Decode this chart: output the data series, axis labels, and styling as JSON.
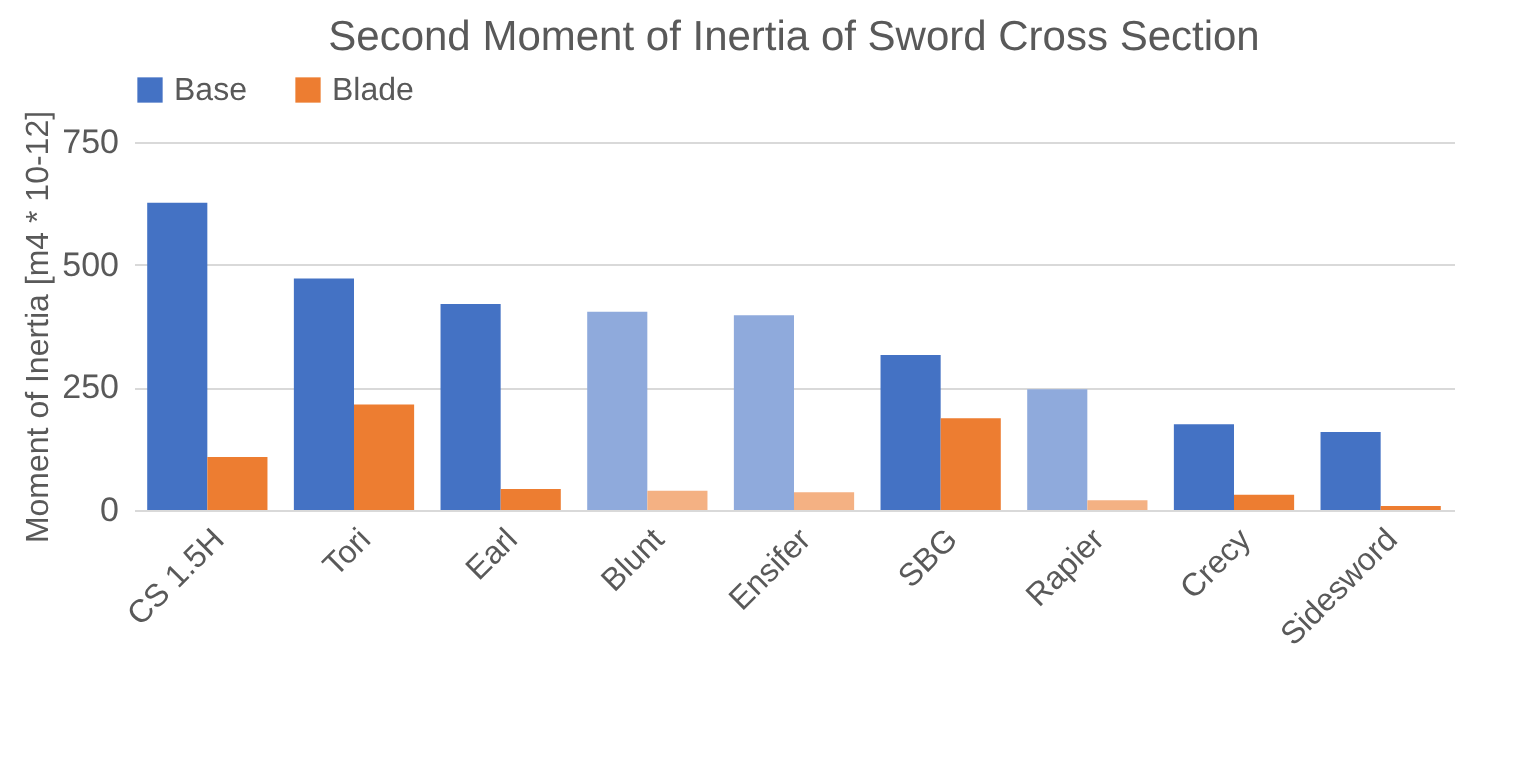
{
  "chart_data": {
    "type": "bar",
    "title": "Second Moment of Inertia of Sword Cross Section",
    "ylabel": "Moment of Inertia [m4 * 10-12]",
    "categories": [
      "CS 1.5H",
      "Tori",
      "Earl",
      "Blunt",
      "Ensifer",
      "SBG",
      "Rapier",
      "Crecy",
      "Sidesword"
    ],
    "series": [
      {
        "name": "Base",
        "color": "#4472c4",
        "colors": [
          "#4472c4",
          "#4472c4",
          "#4472c4",
          "#8faadc",
          "#8faadc",
          "#4472c4",
          "#8faadc",
          "#4472c4",
          "#4472c4"
        ],
        "values": [
          626,
          472,
          420,
          404,
          397,
          316,
          246,
          175,
          159
        ]
      },
      {
        "name": "Blade",
        "color": "#ed7d31",
        "colors": [
          "#ed7d31",
          "#ed7d31",
          "#ed7d31",
          "#f4b183",
          "#f4b183",
          "#ed7d31",
          "#f4b183",
          "#ed7d31",
          "#ed7d31"
        ],
        "values": [
          108,
          215,
          43,
          39,
          36,
          187,
          20,
          31,
          8
        ]
      }
    ],
    "ylim": [
      0,
      750
    ],
    "yticks": [
      0,
      250,
      500,
      750
    ],
    "grid": "y",
    "legend": "top"
  }
}
